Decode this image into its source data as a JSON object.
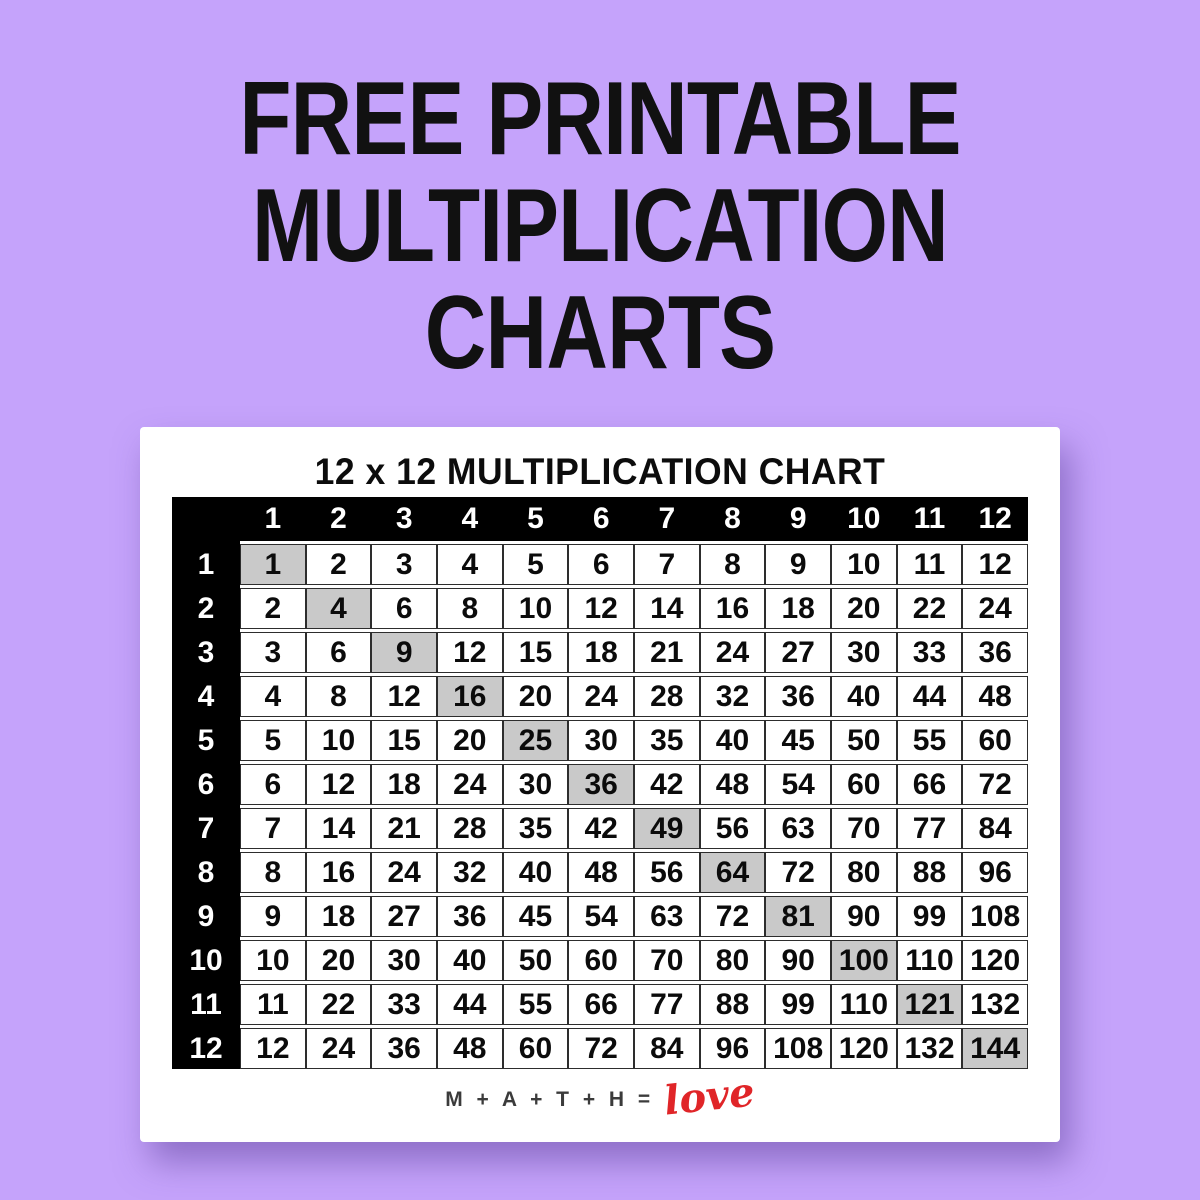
{
  "page": {
    "heading_lines": [
      "FREE PRINTABLE",
      "MULTIPLICATION",
      "CHARTS"
    ]
  },
  "chart_data": {
    "type": "table",
    "title": "12 x 12 MULTIPLICATION CHART",
    "column_headers": [
      "1",
      "2",
      "3",
      "4",
      "5",
      "6",
      "7",
      "8",
      "9",
      "10",
      "11",
      "12"
    ],
    "row_headers": [
      "1",
      "2",
      "3",
      "4",
      "5",
      "6",
      "7",
      "8",
      "9",
      "10",
      "11",
      "12"
    ],
    "rows": [
      [
        1,
        2,
        3,
        4,
        5,
        6,
        7,
        8,
        9,
        10,
        11,
        12
      ],
      [
        2,
        4,
        6,
        8,
        10,
        12,
        14,
        16,
        18,
        20,
        22,
        24
      ],
      [
        3,
        6,
        9,
        12,
        15,
        18,
        21,
        24,
        27,
        30,
        33,
        36
      ],
      [
        4,
        8,
        12,
        16,
        20,
        24,
        28,
        32,
        36,
        40,
        44,
        48
      ],
      [
        5,
        10,
        15,
        20,
        25,
        30,
        35,
        40,
        45,
        50,
        55,
        60
      ],
      [
        6,
        12,
        18,
        24,
        30,
        36,
        42,
        48,
        54,
        60,
        66,
        72
      ],
      [
        7,
        14,
        21,
        28,
        35,
        42,
        49,
        56,
        63,
        70,
        77,
        84
      ],
      [
        8,
        16,
        24,
        32,
        40,
        48,
        56,
        64,
        72,
        80,
        88,
        96
      ],
      [
        9,
        18,
        27,
        36,
        45,
        54,
        63,
        72,
        81,
        90,
        99,
        108
      ],
      [
        10,
        20,
        30,
        40,
        50,
        60,
        70,
        80,
        90,
        100,
        110,
        120
      ],
      [
        11,
        22,
        33,
        44,
        55,
        66,
        77,
        88,
        99,
        110,
        121,
        132
      ],
      [
        12,
        24,
        36,
        48,
        60,
        72,
        84,
        96,
        108,
        120,
        132,
        144
      ]
    ],
    "highlighted_values": [
      1,
      4,
      9,
      16,
      25,
      36,
      49,
      64,
      81,
      100,
      121,
      144
    ],
    "highlight_rule": "diagonal perfect squares shaded gray",
    "legend_position": "none",
    "grid": true
  },
  "footer": {
    "math_text": "M + A + T + H =",
    "love_text": "love"
  },
  "colors": {
    "background": "#C5A3FB",
    "card": "#FFFFFF",
    "heading_text": "#111111",
    "header_bg": "#000000",
    "header_text": "#FFFFFF",
    "highlight_cell": "#C9C9C9",
    "cell_border": "#2D2D2D",
    "love_red": "#E02528"
  }
}
